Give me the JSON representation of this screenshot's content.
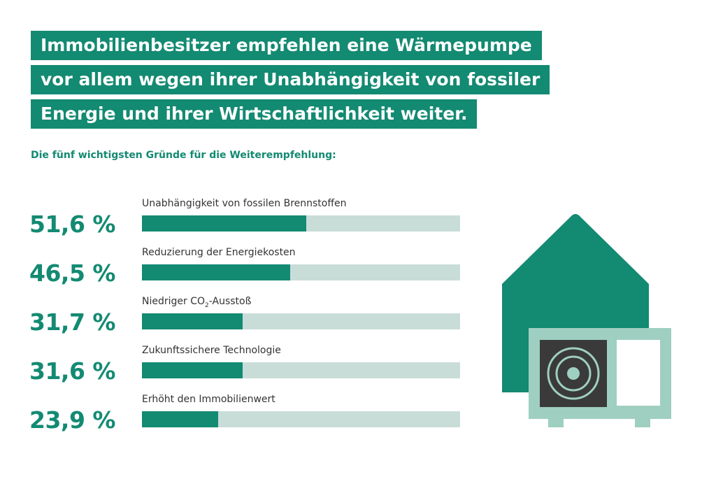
{
  "title": {
    "lines": [
      "Immobilienbesitzer empfehlen eine Wärmepumpe",
      "vor allem wegen ihrer Unabhängigkeit von fossiler",
      "Energie und ihrer Wirtschaftlichkeit weiter."
    ]
  },
  "subtitle": "Die fünf wichtigsten Gründe für die Weiterempfehlung:",
  "colors": {
    "accent": "#138a72",
    "track": "#c9ddd8",
    "unit_light": "#9fcfc1",
    "speaker": "#3a3a3a"
  },
  "chart_data": {
    "type": "bar",
    "orientation": "horizontal",
    "unit": "%",
    "xlim": [
      0,
      100
    ],
    "categories": [
      "Unabhängigkeit von fossilen Brennstoffen",
      "Reduzierung der Energiekosten",
      "Niedriger CO2-Ausstoß",
      "Zukunftssichere Technologie",
      "Erhöht den Immobilienwert"
    ],
    "values": [
      51.6,
      46.5,
      31.7,
      31.6,
      23.9
    ],
    "value_labels": [
      "51,6 %",
      "46,5 %",
      "31,7 %",
      "31,6 %",
      "23,9 %"
    ],
    "label_parts": [
      null,
      null,
      {
        "pre": "Niedriger CO",
        "sub": "2",
        "post": "-Ausstoß"
      },
      null,
      null
    ]
  },
  "illustration": {
    "house_icon": "house-icon",
    "heat_pump_icon": "heat-pump-icon"
  }
}
